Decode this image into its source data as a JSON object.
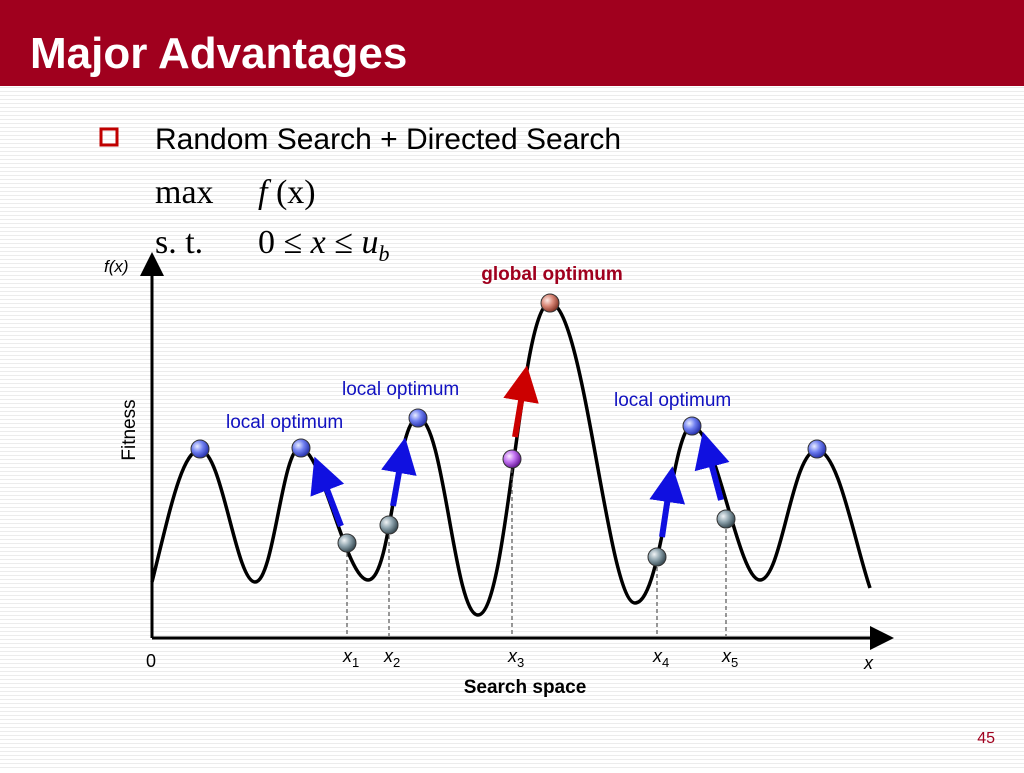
{
  "header": {
    "title": "Major Advantages"
  },
  "bullet": {
    "text": "Random Search + Directed Search"
  },
  "formula": {
    "objective": {
      "label": "max",
      "expr_f": "f",
      "expr_arg": "(x)"
    },
    "constraint": {
      "label": "s. t.",
      "lower": "0 ≤",
      "var": "x",
      "rel": "≤",
      "upper": "u",
      "upper_sub": "b"
    }
  },
  "diagram": {
    "y_axis_symbol": "f(x)",
    "y_axis_label": "Fitness",
    "x_axis_label": "Search space",
    "origin": "0",
    "x_axis_symbol": "x",
    "global_label": "global optimum",
    "local_labels": [
      "local optimum",
      "local optimum",
      "local optimum"
    ],
    "points": [
      {
        "base": "x",
        "sub": "1"
      },
      {
        "base": "x",
        "sub": "2"
      },
      {
        "base": "x",
        "sub": "3"
      },
      {
        "base": "x",
        "sub": "4"
      },
      {
        "base": "x",
        "sub": "5"
      }
    ]
  },
  "footer": {
    "page": "45"
  }
}
